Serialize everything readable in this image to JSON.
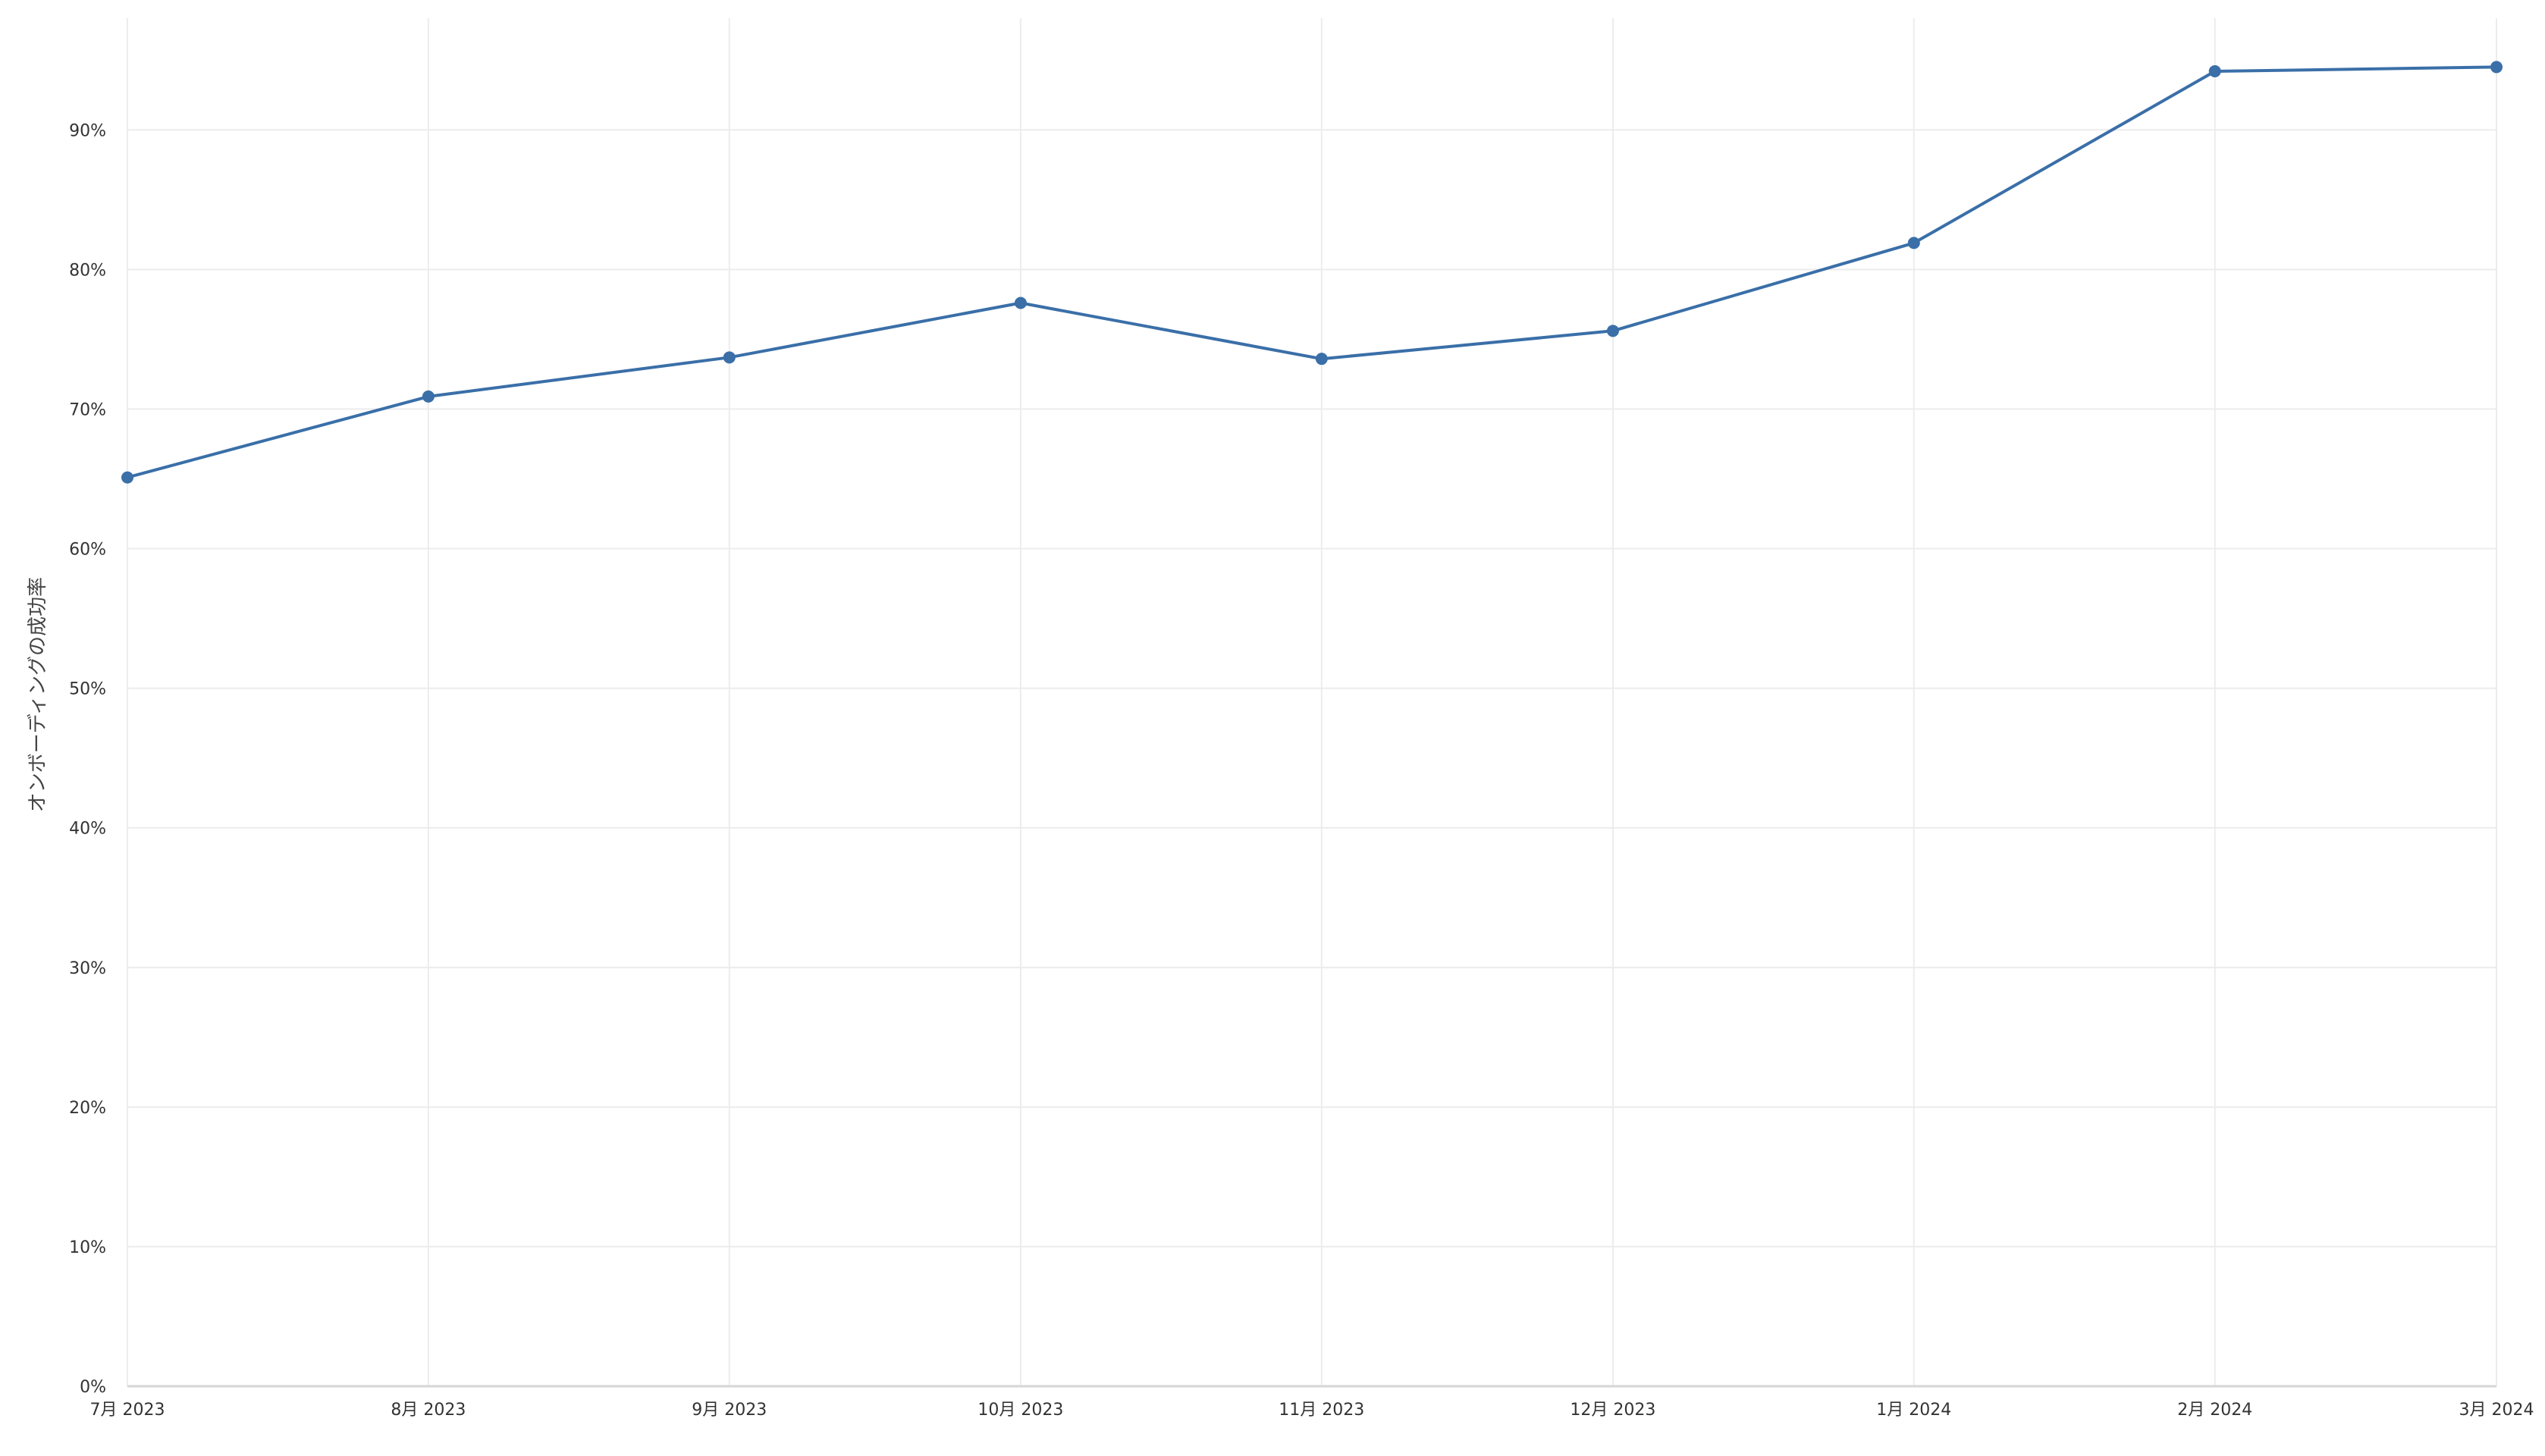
{
  "chart_data": {
    "type": "line",
    "title": "",
    "xlabel": "",
    "ylabel": "オンボーディングの成功率",
    "categories": [
      "7月 2023",
      "8月 2023",
      "9月 2023",
      "10月 2023",
      "11月 2023",
      "12月 2023",
      "1月 2024",
      "2月 2024",
      "3月 2024"
    ],
    "x": [
      "2023-07-01",
      "2023-08-01",
      "2023-09-01",
      "2023-10-01",
      "2023-11-01",
      "2023-12-01",
      "2024-01-01",
      "2024-02-01",
      "2024-03-01"
    ],
    "series": [
      {
        "values": [
          65.1,
          70.9,
          73.7,
          77.6,
          73.6,
          75.6,
          81.9,
          94.2,
          94.5
        ],
        "color": "#3a6fa8"
      }
    ],
    "ylim": [
      0,
      98
    ],
    "yticks": [
      0,
      10,
      20,
      30,
      40,
      50,
      60,
      70,
      80,
      90
    ],
    "ytick_labels": [
      "0%",
      "10%",
      "20%",
      "30%",
      "40%",
      "50%",
      "60%",
      "70%",
      "80%",
      "90%"
    ],
    "grid": true,
    "legend": "none"
  }
}
